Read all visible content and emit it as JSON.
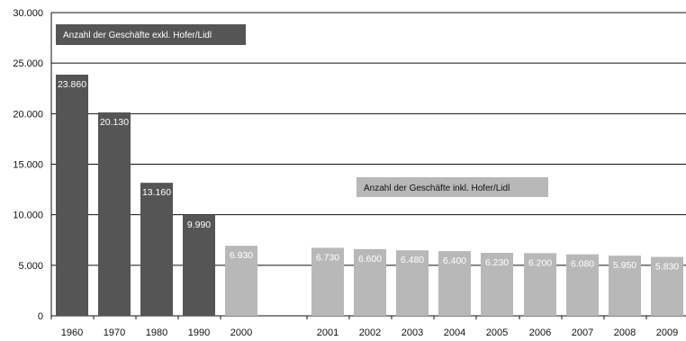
{
  "chart_data": {
    "type": "bar",
    "title": "",
    "xlabel": "",
    "ylabel": "",
    "ylim": [
      0,
      30000
    ],
    "y_ticks": [
      "0",
      "5.000",
      "10.000",
      "15.000",
      "20.000",
      "25.000",
      "30.000"
    ],
    "grid": "horizontal",
    "categories": [
      "1960",
      "1970",
      "1980",
      "1990",
      "2000",
      "2001",
      "2002",
      "2003",
      "2004",
      "2005",
      "2006",
      "2007",
      "2008",
      "2009"
    ],
    "values": [
      23860,
      20130,
      13160,
      9990,
      6930,
      6730,
      6600,
      6480,
      6400,
      6230,
      6200,
      6080,
      5950,
      5830
    ],
    "value_labels": [
      "23.860",
      "20.130",
      "13.160",
      "9.990",
      "6.930",
      "6.730",
      "6.600",
      "6.480",
      "6.400",
      "6.230",
      "6.200",
      "6.080",
      "5.950",
      "5.830"
    ],
    "series": [
      {
        "name": "Anzahl der Geschäfte exkl. Hofer/Lidl",
        "values": [
          23860,
          20130,
          13160,
          9990,
          null,
          null,
          null,
          null,
          null,
          null,
          null,
          null,
          null,
          null
        ]
      },
      {
        "name": "Anzahl der Geschäfte inkl. Hofer/Lidl",
        "values": [
          null,
          null,
          null,
          null,
          6930,
          6730,
          6600,
          6480,
          6400,
          6230,
          6200,
          6080,
          5950,
          5830
        ]
      }
    ],
    "legend": {
      "dark": "Anzahl der Geschäfte exkl. Hofer/Lidl",
      "light": "Anzahl der Geschäfte inkl. Hofer/Lidl"
    },
    "colors": {
      "dark": "#555555",
      "light": "#b8b8b8",
      "grid": "#111111",
      "axis": "#111111"
    }
  }
}
